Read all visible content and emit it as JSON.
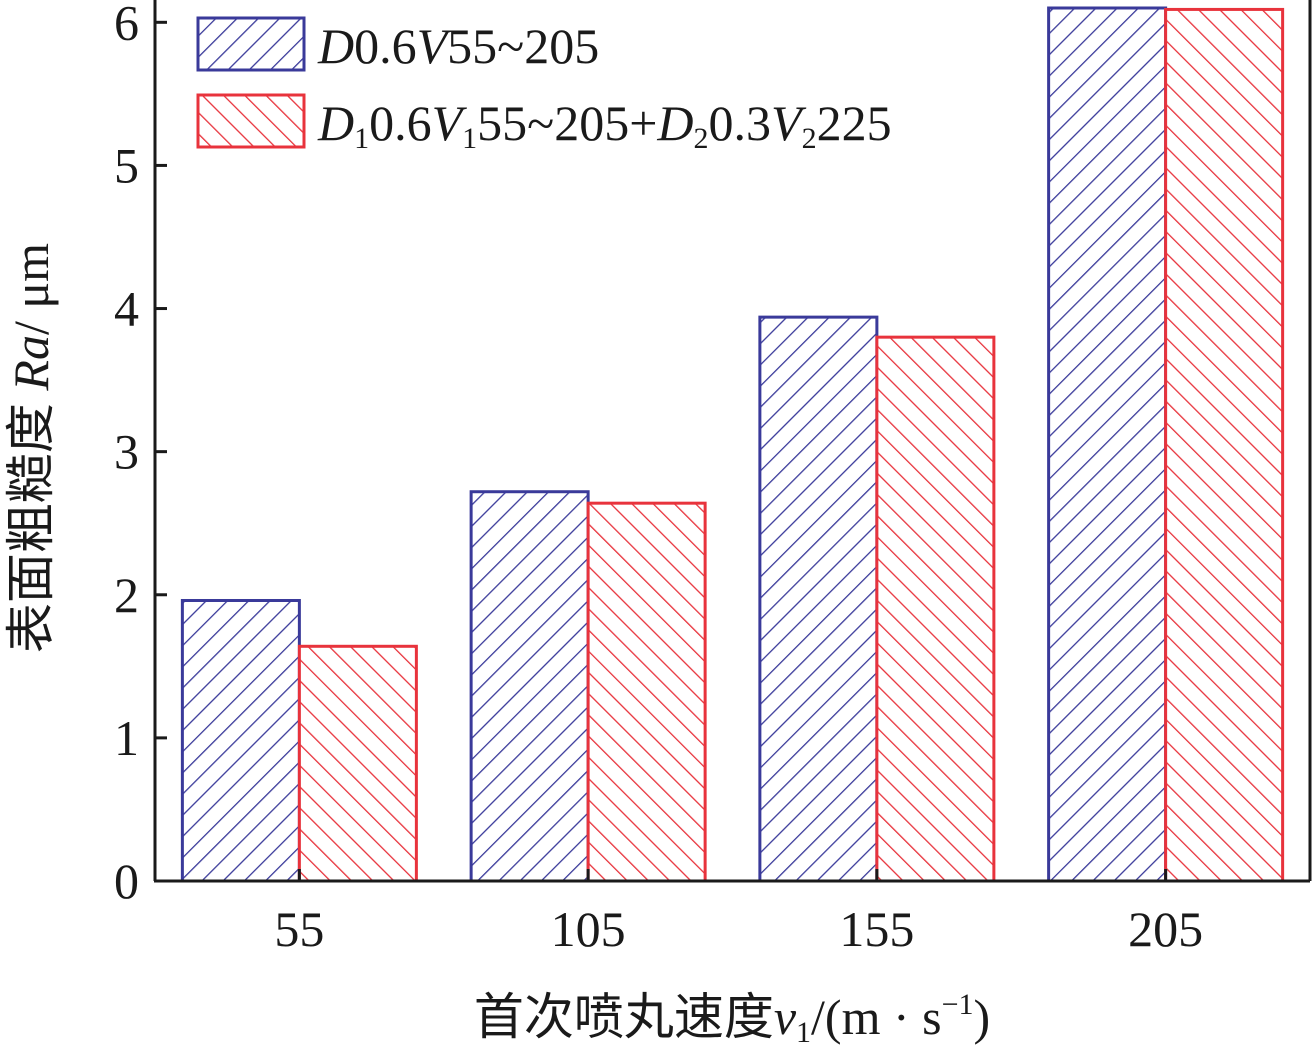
{
  "chart_data": {
    "type": "bar",
    "categories": [
      "55",
      "105",
      "155",
      "205"
    ],
    "series": [
      {
        "name_parts": [
          {
            "t": "D",
            "i": true
          },
          {
            "t": "0.6"
          },
          {
            "t": "V",
            "i": true
          },
          {
            "t": "55~205"
          }
        ],
        "values": [
          1.96,
          2.72,
          3.94,
          6.1
        ],
        "color": "#3a3a9a"
      },
      {
        "name_parts": [
          {
            "t": "D",
            "i": true
          },
          {
            "t": "1",
            "sub": true
          },
          {
            "t": "0.6"
          },
          {
            "t": "V",
            "i": true
          },
          {
            "t": "1",
            "sub": true
          },
          {
            "t": "55~205+"
          },
          {
            "t": "D",
            "i": true
          },
          {
            "t": "2",
            "sub": true
          },
          {
            "t": "0.3"
          },
          {
            "t": "V",
            "i": true
          },
          {
            "t": "2",
            "sub": true
          },
          {
            "t": "225"
          }
        ],
        "values": [
          1.64,
          2.64,
          3.8,
          6.09
        ],
        "color": "#e8333c"
      }
    ],
    "yticks": [
      "0",
      "1",
      "2",
      "3",
      "4",
      "5",
      "6"
    ],
    "ylim": [
      0,
      6.1
    ],
    "ylabel_parts": [
      {
        "t": "表面粗糙度 "
      },
      {
        "t": "Ra",
        "i": true
      },
      {
        "t": "/ μm"
      }
    ],
    "xlabel_parts": [
      {
        "t": "首次喷丸速度"
      },
      {
        "t": "v",
        "i": true
      },
      {
        "t": "1",
        "sub": true
      },
      {
        "t": "/(m · s"
      },
      {
        "t": "−1",
        "sup": true
      },
      {
        "t": ")"
      }
    ],
    "legend_position": "top-left",
    "grid": false
  }
}
